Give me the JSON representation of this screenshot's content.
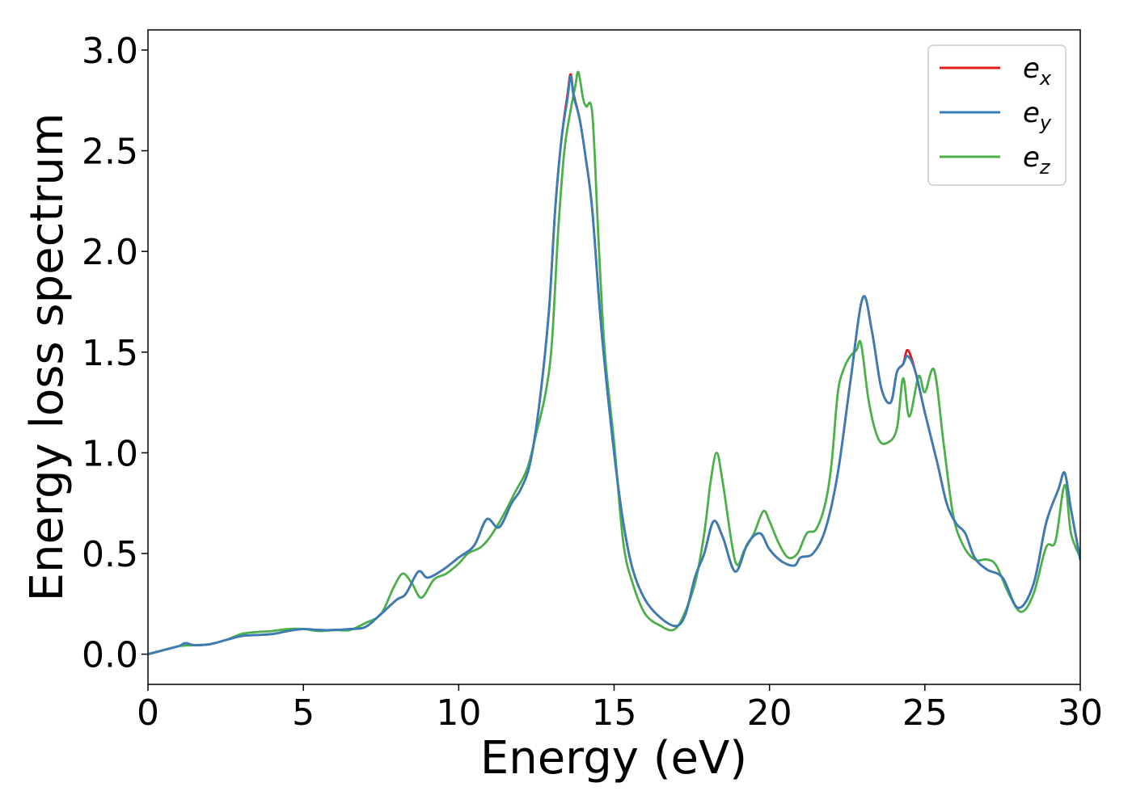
{
  "chart_data": {
    "type": "line",
    "xlabel": "Energy (eV)",
    "ylabel": "Energy loss spectrum",
    "xlim": [
      0,
      30
    ],
    "ylim": [
      -0.15,
      3.1
    ],
    "xticks": [
      0,
      5,
      10,
      15,
      20,
      25,
      30
    ],
    "xtick_labels": [
      "0",
      "5",
      "10",
      "15",
      "20",
      "25",
      "30"
    ],
    "yticks": [
      0.0,
      0.5,
      1.0,
      1.5,
      2.0,
      2.5,
      3.0
    ],
    "ytick_labels": [
      "0.0",
      "0.5",
      "1.0",
      "1.5",
      "2.0",
      "2.5",
      "3.0"
    ],
    "grid": false,
    "legend_position": "top-right",
    "series": [
      {
        "name": "e",
        "subscript": "x",
        "color": "#e41a1c",
        "points": [
          [
            0,
            0.0
          ],
          [
            0.5,
            0.02
          ],
          [
            1.0,
            0.04
          ],
          [
            1.2,
            0.055
          ],
          [
            1.5,
            0.045
          ],
          [
            2.0,
            0.05
          ],
          [
            2.5,
            0.07
          ],
          [
            3.0,
            0.09
          ],
          [
            3.5,
            0.095
          ],
          [
            4.0,
            0.1
          ],
          [
            4.5,
            0.115
          ],
          [
            5.0,
            0.125
          ],
          [
            5.5,
            0.12
          ],
          [
            6.0,
            0.12
          ],
          [
            6.5,
            0.125
          ],
          [
            7.0,
            0.135
          ],
          [
            7.5,
            0.2
          ],
          [
            8.0,
            0.27
          ],
          [
            8.3,
            0.3
          ],
          [
            8.7,
            0.41
          ],
          [
            9.0,
            0.38
          ],
          [
            9.5,
            0.42
          ],
          [
            10.0,
            0.48
          ],
          [
            10.5,
            0.54
          ],
          [
            10.9,
            0.67
          ],
          [
            11.3,
            0.63
          ],
          [
            11.7,
            0.75
          ],
          [
            12.0,
            0.82
          ],
          [
            12.3,
            0.95
          ],
          [
            12.6,
            1.25
          ],
          [
            12.9,
            1.7
          ],
          [
            13.1,
            2.2
          ],
          [
            13.3,
            2.55
          ],
          [
            13.5,
            2.78
          ],
          [
            13.6,
            2.88
          ],
          [
            13.7,
            2.78
          ],
          [
            13.9,
            2.65
          ],
          [
            14.1,
            2.45
          ],
          [
            14.3,
            2.2
          ],
          [
            14.6,
            1.6
          ],
          [
            15.0,
            1.0
          ],
          [
            15.3,
            0.65
          ],
          [
            15.6,
            0.42
          ],
          [
            16.0,
            0.27
          ],
          [
            16.5,
            0.18
          ],
          [
            17.0,
            0.14
          ],
          [
            17.3,
            0.2
          ],
          [
            17.6,
            0.38
          ],
          [
            17.9,
            0.5
          ],
          [
            18.2,
            0.66
          ],
          [
            18.5,
            0.58
          ],
          [
            18.9,
            0.41
          ],
          [
            19.3,
            0.55
          ],
          [
            19.7,
            0.6
          ],
          [
            20.0,
            0.52
          ],
          [
            20.4,
            0.46
          ],
          [
            20.8,
            0.44
          ],
          [
            21.0,
            0.48
          ],
          [
            21.4,
            0.5
          ],
          [
            21.8,
            0.62
          ],
          [
            22.2,
            0.9
          ],
          [
            22.6,
            1.35
          ],
          [
            23.0,
            1.77
          ],
          [
            23.3,
            1.6
          ],
          [
            23.6,
            1.32
          ],
          [
            23.9,
            1.25
          ],
          [
            24.1,
            1.4
          ],
          [
            24.3,
            1.44
          ],
          [
            24.45,
            1.51
          ],
          [
            24.7,
            1.4
          ],
          [
            25.0,
            1.2
          ],
          [
            25.4,
            0.95
          ],
          [
            25.7,
            0.75
          ],
          [
            26.0,
            0.65
          ],
          [
            26.3,
            0.6
          ],
          [
            26.6,
            0.48
          ],
          [
            27.0,
            0.42
          ],
          [
            27.5,
            0.38
          ],
          [
            28.0,
            0.23
          ],
          [
            28.5,
            0.35
          ],
          [
            28.9,
            0.65
          ],
          [
            29.3,
            0.82
          ],
          [
            29.5,
            0.9
          ],
          [
            29.7,
            0.72
          ],
          [
            30.0,
            0.47
          ]
        ]
      },
      {
        "name": "e",
        "subscript": "y",
        "color": "#377eb8",
        "points": [
          [
            0,
            0.0
          ],
          [
            0.5,
            0.02
          ],
          [
            1.0,
            0.04
          ],
          [
            1.2,
            0.055
          ],
          [
            1.5,
            0.045
          ],
          [
            2.0,
            0.05
          ],
          [
            2.5,
            0.07
          ],
          [
            3.0,
            0.09
          ],
          [
            3.5,
            0.095
          ],
          [
            4.0,
            0.1
          ],
          [
            4.5,
            0.115
          ],
          [
            5.0,
            0.125
          ],
          [
            5.5,
            0.12
          ],
          [
            6.0,
            0.12
          ],
          [
            6.5,
            0.125
          ],
          [
            7.0,
            0.135
          ],
          [
            7.5,
            0.2
          ],
          [
            8.0,
            0.27
          ],
          [
            8.3,
            0.3
          ],
          [
            8.7,
            0.41
          ],
          [
            9.0,
            0.38
          ],
          [
            9.5,
            0.42
          ],
          [
            10.0,
            0.48
          ],
          [
            10.5,
            0.54
          ],
          [
            10.9,
            0.67
          ],
          [
            11.3,
            0.63
          ],
          [
            11.7,
            0.75
          ],
          [
            12.0,
            0.82
          ],
          [
            12.3,
            0.95
          ],
          [
            12.6,
            1.25
          ],
          [
            12.9,
            1.7
          ],
          [
            13.1,
            2.2
          ],
          [
            13.3,
            2.55
          ],
          [
            13.5,
            2.76
          ],
          [
            13.6,
            2.87
          ],
          [
            13.7,
            2.77
          ],
          [
            13.9,
            2.65
          ],
          [
            14.1,
            2.45
          ],
          [
            14.3,
            2.2
          ],
          [
            14.6,
            1.6
          ],
          [
            15.0,
            1.0
          ],
          [
            15.3,
            0.65
          ],
          [
            15.6,
            0.42
          ],
          [
            16.0,
            0.27
          ],
          [
            16.5,
            0.18
          ],
          [
            17.0,
            0.14
          ],
          [
            17.3,
            0.2
          ],
          [
            17.6,
            0.38
          ],
          [
            17.9,
            0.5
          ],
          [
            18.2,
            0.66
          ],
          [
            18.5,
            0.58
          ],
          [
            18.9,
            0.41
          ],
          [
            19.3,
            0.55
          ],
          [
            19.7,
            0.6
          ],
          [
            20.0,
            0.52
          ],
          [
            20.4,
            0.46
          ],
          [
            20.8,
            0.44
          ],
          [
            21.0,
            0.48
          ],
          [
            21.4,
            0.5
          ],
          [
            21.8,
            0.62
          ],
          [
            22.2,
            0.9
          ],
          [
            22.6,
            1.35
          ],
          [
            23.0,
            1.77
          ],
          [
            23.3,
            1.6
          ],
          [
            23.6,
            1.32
          ],
          [
            23.9,
            1.25
          ],
          [
            24.1,
            1.4
          ],
          [
            24.3,
            1.44
          ],
          [
            24.45,
            1.48
          ],
          [
            24.7,
            1.4
          ],
          [
            25.0,
            1.2
          ],
          [
            25.4,
            0.95
          ],
          [
            25.7,
            0.75
          ],
          [
            26.0,
            0.65
          ],
          [
            26.3,
            0.6
          ],
          [
            26.6,
            0.48
          ],
          [
            27.0,
            0.42
          ],
          [
            27.5,
            0.38
          ],
          [
            28.0,
            0.23
          ],
          [
            28.5,
            0.35
          ],
          [
            28.9,
            0.65
          ],
          [
            29.3,
            0.82
          ],
          [
            29.5,
            0.9
          ],
          [
            29.7,
            0.72
          ],
          [
            30.0,
            0.47
          ]
        ]
      },
      {
        "name": "e",
        "subscript": "z",
        "color": "#4daf4a",
        "points": [
          [
            0,
            0.0
          ],
          [
            0.5,
            0.02
          ],
          [
            1.0,
            0.04
          ],
          [
            1.5,
            0.045
          ],
          [
            2.0,
            0.05
          ],
          [
            2.5,
            0.07
          ],
          [
            3.0,
            0.1
          ],
          [
            3.5,
            0.11
          ],
          [
            4.0,
            0.115
          ],
          [
            4.5,
            0.125
          ],
          [
            5.0,
            0.125
          ],
          [
            5.5,
            0.115
          ],
          [
            6.0,
            0.12
          ],
          [
            6.5,
            0.12
          ],
          [
            7.0,
            0.155
          ],
          [
            7.5,
            0.2
          ],
          [
            7.9,
            0.33
          ],
          [
            8.2,
            0.4
          ],
          [
            8.5,
            0.35
          ],
          [
            8.8,
            0.28
          ],
          [
            9.2,
            0.37
          ],
          [
            9.6,
            0.4
          ],
          [
            10.0,
            0.45
          ],
          [
            10.3,
            0.5
          ],
          [
            10.7,
            0.53
          ],
          [
            11.0,
            0.58
          ],
          [
            11.4,
            0.68
          ],
          [
            11.8,
            0.8
          ],
          [
            12.2,
            0.92
          ],
          [
            12.5,
            1.1
          ],
          [
            12.8,
            1.3
          ],
          [
            13.0,
            1.55
          ],
          [
            13.2,
            2.1
          ],
          [
            13.4,
            2.5
          ],
          [
            13.6,
            2.7
          ],
          [
            13.75,
            2.82
          ],
          [
            13.85,
            2.89
          ],
          [
            14.0,
            2.76
          ],
          [
            14.1,
            2.72
          ],
          [
            14.3,
            2.68
          ],
          [
            14.5,
            2.05
          ],
          [
            14.7,
            1.5
          ],
          [
            15.0,
            1.05
          ],
          [
            15.3,
            0.55
          ],
          [
            15.6,
            0.35
          ],
          [
            16.0,
            0.2
          ],
          [
            16.5,
            0.14
          ],
          [
            16.9,
            0.12
          ],
          [
            17.2,
            0.18
          ],
          [
            17.6,
            0.35
          ],
          [
            17.9,
            0.6
          ],
          [
            18.1,
            0.85
          ],
          [
            18.3,
            1.0
          ],
          [
            18.5,
            0.85
          ],
          [
            18.9,
            0.46
          ],
          [
            19.2,
            0.52
          ],
          [
            19.5,
            0.6
          ],
          [
            19.8,
            0.71
          ],
          [
            20.0,
            0.66
          ],
          [
            20.3,
            0.55
          ],
          [
            20.6,
            0.48
          ],
          [
            20.9,
            0.5
          ],
          [
            21.2,
            0.6
          ],
          [
            21.5,
            0.62
          ],
          [
            21.8,
            0.75
          ],
          [
            22.0,
            0.95
          ],
          [
            22.2,
            1.3
          ],
          [
            22.4,
            1.42
          ],
          [
            22.6,
            1.48
          ],
          [
            22.8,
            1.51
          ],
          [
            22.95,
            1.54
          ],
          [
            23.2,
            1.25
          ],
          [
            23.5,
            1.07
          ],
          [
            23.8,
            1.05
          ],
          [
            24.1,
            1.12
          ],
          [
            24.3,
            1.37
          ],
          [
            24.5,
            1.18
          ],
          [
            24.8,
            1.38
          ],
          [
            25.0,
            1.3
          ],
          [
            25.3,
            1.41
          ],
          [
            25.6,
            1.05
          ],
          [
            25.9,
            0.7
          ],
          [
            26.2,
            0.55
          ],
          [
            26.6,
            0.47
          ],
          [
            27.0,
            0.47
          ],
          [
            27.3,
            0.44
          ],
          [
            27.7,
            0.3
          ],
          [
            28.1,
            0.21
          ],
          [
            28.5,
            0.3
          ],
          [
            28.9,
            0.53
          ],
          [
            29.2,
            0.56
          ],
          [
            29.5,
            0.84
          ],
          [
            29.7,
            0.6
          ],
          [
            30.0,
            0.48
          ]
        ]
      }
    ]
  }
}
